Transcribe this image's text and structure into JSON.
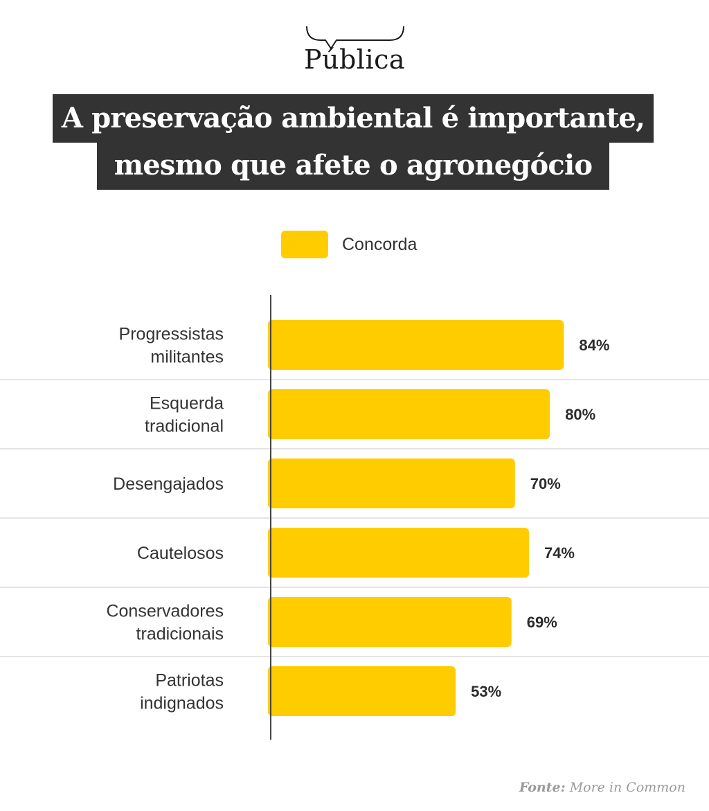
{
  "header": {
    "logo_text": "Pública",
    "title_line1": "A preservação ambiental é importante,",
    "title_line2": "mesmo que afete o agronegócio"
  },
  "legend": {
    "label": "Concorda",
    "color": "#ffcc00"
  },
  "chart_data": {
    "type": "bar",
    "orientation": "horizontal",
    "title": "A preservação ambiental é importante, mesmo que afete o agronegócio",
    "categories": [
      [
        "Progressistas",
        "militantes"
      ],
      [
        "Esquerda",
        "tradicional"
      ],
      [
        "Desengajados"
      ],
      [
        "Cautelosos"
      ],
      [
        "Conservadores",
        "tradicionais"
      ],
      [
        "Patriotas",
        "indignados"
      ]
    ],
    "series": [
      {
        "name": "Concorda",
        "values": [
          84,
          80,
          70,
          74,
          69,
          53
        ],
        "color": "#ffcc00"
      }
    ],
    "value_labels": [
      "84%",
      "80%",
      "70%",
      "74%",
      "69%",
      "53%"
    ],
    "xlim": [
      0,
      100
    ],
    "xlabel": "",
    "ylabel": ""
  },
  "footer": {
    "source_label": "Fonte:",
    "source_value": "More in Common"
  }
}
